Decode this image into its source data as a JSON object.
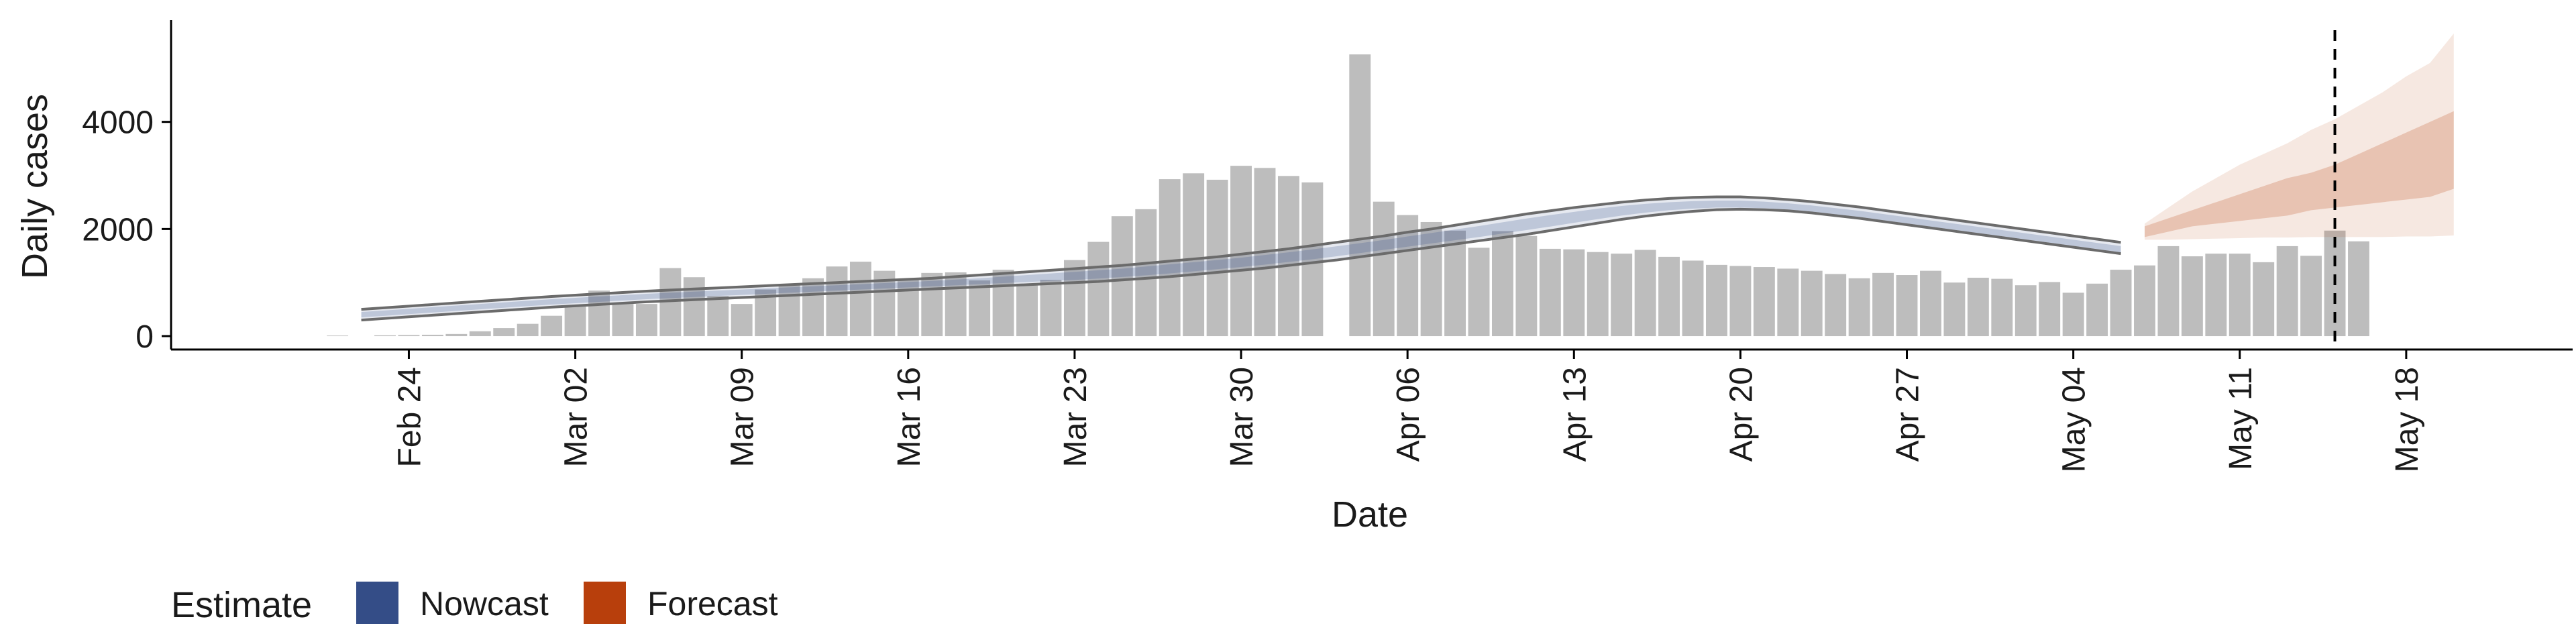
{
  "chart_data": {
    "type": "bar",
    "title": "",
    "xlabel": "Date",
    "ylabel": "Daily cases",
    "ylim": [
      -250,
      5900
    ],
    "xlim": [
      "2020-02-14",
      "2020-05-25"
    ],
    "yticks": [
      0,
      2000,
      4000
    ],
    "xticks": [
      {
        "date": "2020-02-24",
        "label": "Feb 24"
      },
      {
        "date": "2020-03-02",
        "label": "Mar 02"
      },
      {
        "date": "2020-03-09",
        "label": "Mar 09"
      },
      {
        "date": "2020-03-16",
        "label": "Mar 16"
      },
      {
        "date": "2020-03-23",
        "label": "Mar 23"
      },
      {
        "date": "2020-03-30",
        "label": "Mar 30"
      },
      {
        "date": "2020-04-06",
        "label": "Apr 06"
      },
      {
        "date": "2020-04-13",
        "label": "Apr 13"
      },
      {
        "date": "2020-04-20",
        "label": "Apr 20"
      },
      {
        "date": "2020-04-27",
        "label": "Apr 27"
      },
      {
        "date": "2020-05-04",
        "label": "May 04"
      },
      {
        "date": "2020-05-11",
        "label": "May 11"
      },
      {
        "date": "2020-05-18",
        "label": "May 18"
      }
    ],
    "grid": false,
    "legend": {
      "position": "bottom-left",
      "title": "Estimate",
      "entries": [
        {
          "name": "Nowcast",
          "color": "#344d87"
        },
        {
          "name": "Forecast",
          "color": "#b83f0c"
        }
      ]
    },
    "vline_date": "2020-05-15",
    "bars": {
      "start": "2020-02-21",
      "color": "#bdbdbd",
      "values": [
        10,
        0,
        15,
        20,
        25,
        40,
        90,
        150,
        230,
        380,
        550,
        850,
        600,
        600,
        1270,
        1100,
        750,
        600,
        870,
        950,
        1080,
        1300,
        1390,
        1220,
        1060,
        1180,
        1190,
        1040,
        1240,
        980,
        1050,
        1420,
        1760,
        2240,
        2370,
        2930,
        3040,
        2920,
        3180,
        3140,
        2990,
        2870,
        0,
        5260,
        2510,
        2260,
        2130,
        1970,
        1650,
        1960,
        1870,
        1630,
        1620,
        1570,
        1540,
        1610,
        1480,
        1410,
        1330,
        1310,
        1290,
        1260,
        1220,
        1160,
        1080,
        1180,
        1140,
        1220,
        1000,
        1090,
        1070,
        950,
        1010,
        810,
        980,
        1240,
        1320,
        1680,
        1490,
        1540,
        1540,
        1380,
        1680,
        1500,
        1970,
        1770
      ]
    },
    "nowcast": {
      "start": "2020-02-22",
      "end": "2020-05-06",
      "color": "#344d87",
      "outer_lower": [
        300,
        330,
        360,
        390,
        420,
        450,
        480,
        510,
        540,
        565,
        590,
        615,
        640,
        660,
        680,
        700,
        720,
        740,
        760,
        780,
        800,
        820,
        840,
        860,
        880,
        900,
        920,
        940,
        960,
        980,
        1000,
        1020,
        1050,
        1080,
        1110,
        1150,
        1190,
        1230,
        1270,
        1320,
        1370,
        1420,
        1480,
        1540,
        1600,
        1660,
        1720,
        1780,
        1840,
        1900,
        1970,
        2040,
        2110,
        2180,
        2240,
        2290,
        2330,
        2360,
        2370,
        2360,
        2340,
        2300,
        2250,
        2200,
        2140,
        2080,
        2020,
        1960,
        1900,
        1840,
        1780,
        1720,
        1660,
        1600,
        1540
      ],
      "outer_upper": [
        500,
        530,
        560,
        590,
        620,
        650,
        680,
        710,
        740,
        765,
        790,
        815,
        840,
        860,
        880,
        900,
        920,
        940,
        960,
        980,
        1000,
        1020,
        1040,
        1060,
        1080,
        1110,
        1140,
        1170,
        1200,
        1230,
        1260,
        1290,
        1320,
        1360,
        1400,
        1440,
        1480,
        1530,
        1580,
        1630,
        1690,
        1750,
        1810,
        1870,
        1940,
        2000,
        2070,
        2140,
        2210,
        2280,
        2340,
        2400,
        2450,
        2500,
        2540,
        2570,
        2590,
        2600,
        2600,
        2580,
        2550,
        2510,
        2460,
        2410,
        2350,
        2290,
        2230,
        2170,
        2110,
        2050,
        1990,
        1930,
        1870,
        1810,
        1750
      ],
      "inner_lower": [
        350,
        380,
        410,
        440,
        470,
        500,
        530,
        560,
        590,
        615,
        640,
        665,
        690,
        710,
        730,
        750,
        770,
        790,
        810,
        830,
        850,
        870,
        890,
        910,
        930,
        950,
        970,
        990,
        1010,
        1030,
        1050,
        1075,
        1105,
        1135,
        1170,
        1210,
        1250,
        1290,
        1335,
        1385,
        1435,
        1490,
        1550,
        1610,
        1670,
        1730,
        1790,
        1850,
        1915,
        1980,
        2045,
        2115,
        2185,
        2250,
        2305,
        2350,
        2380,
        2400,
        2400,
        2390,
        2365,
        2325,
        2275,
        2225,
        2165,
        2105,
        2045,
        1985,
        1925,
        1865,
        1805,
        1745,
        1685,
        1625,
        1565
      ],
      "inner_upper": [
        450,
        480,
        510,
        540,
        570,
        600,
        630,
        660,
        690,
        715,
        740,
        765,
        790,
        810,
        830,
        850,
        870,
        890,
        910,
        930,
        950,
        970,
        990,
        1010,
        1030,
        1055,
        1080,
        1110,
        1140,
        1170,
        1200,
        1230,
        1260,
        1300,
        1340,
        1380,
        1420,
        1465,
        1515,
        1565,
        1620,
        1675,
        1735,
        1795,
        1860,
        1925,
        1990,
        2055,
        2125,
        2195,
        2260,
        2320,
        2380,
        2430,
        2470,
        2500,
        2520,
        2530,
        2530,
        2510,
        2480,
        2440,
        2390,
        2340,
        2280,
        2220,
        2160,
        2100,
        2040,
        1980,
        1920,
        1860,
        1800,
        1740,
        1680
      ]
    },
    "forecast": {
      "start": "2020-05-07",
      "end": "2020-05-20",
      "color": "#b83f0c",
      "outer_lower": [
        1800,
        1800,
        1810,
        1820,
        1830,
        1840,
        1840,
        1850,
        1850,
        1850,
        1850,
        1860,
        1860,
        1880
      ],
      "outer_upper": [
        2100,
        2400,
        2700,
        2950,
        3200,
        3400,
        3600,
        3850,
        4050,
        4300,
        4550,
        4850,
        5100,
        5650
      ],
      "inner_lower": [
        1850,
        1950,
        2050,
        2100,
        2150,
        2200,
        2250,
        2350,
        2400,
        2450,
        2500,
        2550,
        2600,
        2750
      ],
      "inner_upper": [
        2050,
        2200,
        2350,
        2500,
        2650,
        2800,
        2950,
        3050,
        3200,
        3400,
        3600,
        3800,
        4000,
        4200
      ]
    }
  }
}
